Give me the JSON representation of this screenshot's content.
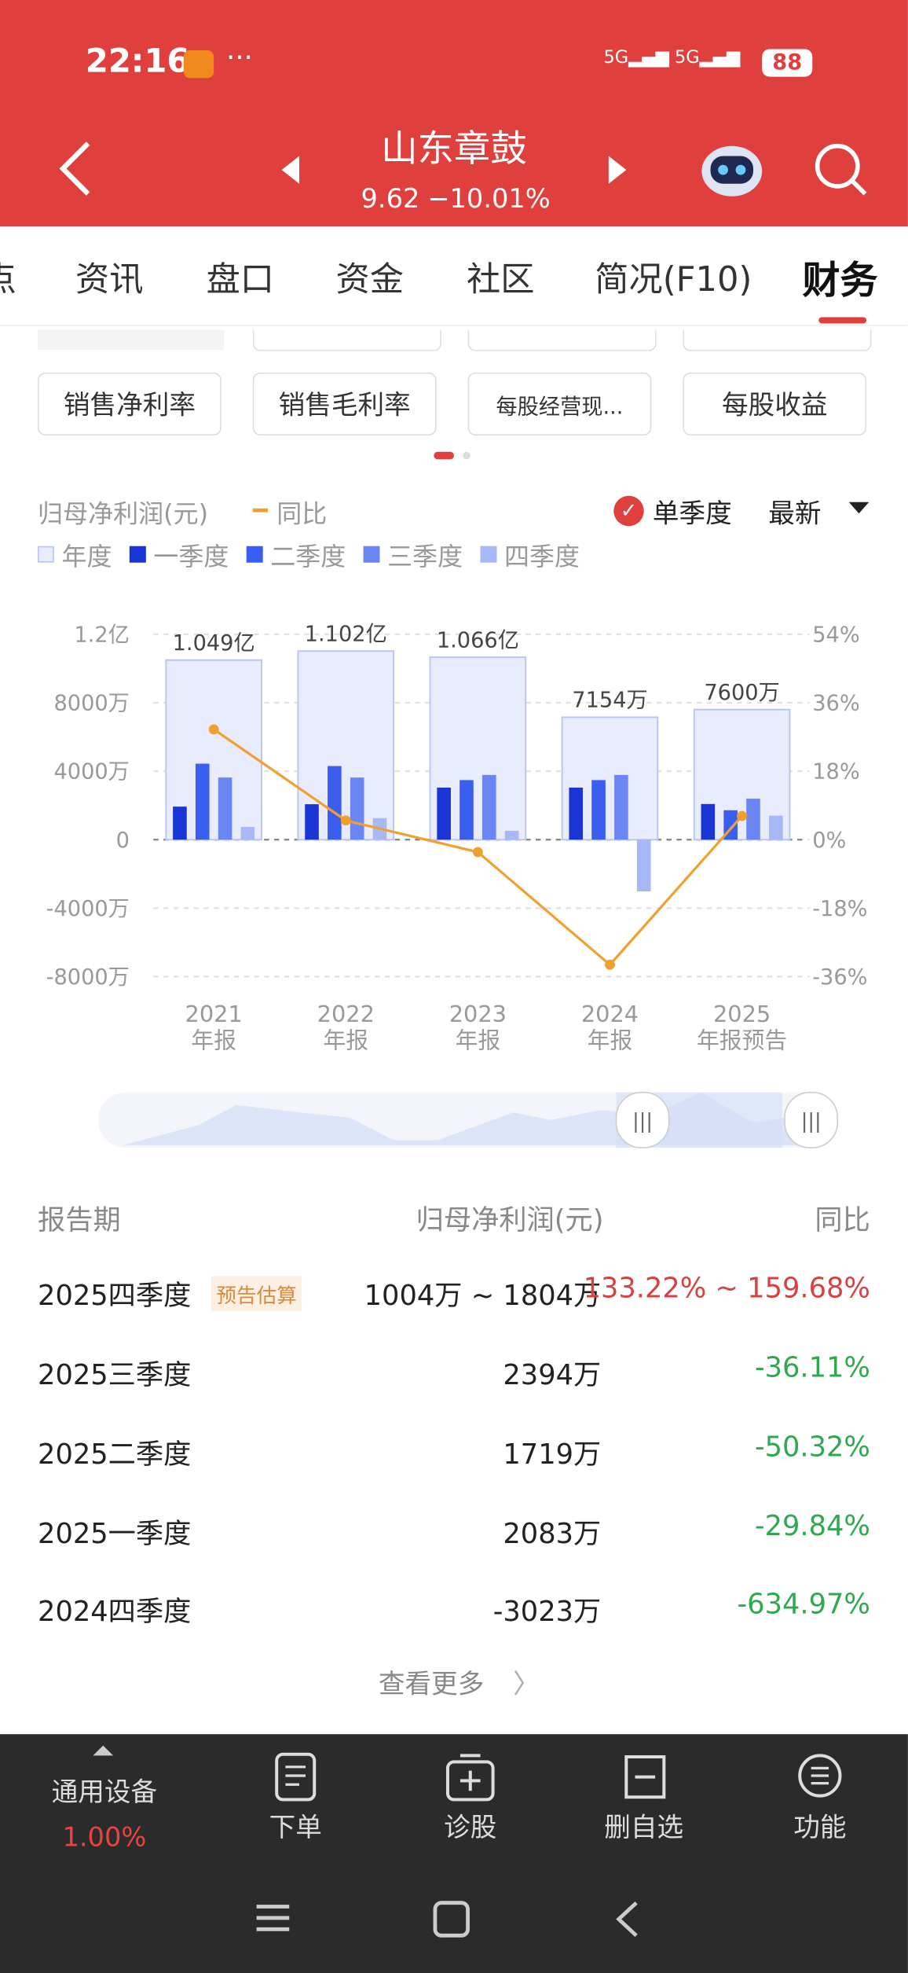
{
  "status_bar": {
    "time": "22:16",
    "battery": "88"
  },
  "header": {
    "title": "山东章鼓",
    "price": "9.62",
    "change": "−10.01%"
  },
  "tabs": [
    "点",
    "资讯",
    "盘口",
    "资金",
    "社区",
    "简况(F10)",
    "财务"
  ],
  "chips": [
    "销售净利率",
    "销售毛利率",
    "每股经营现...",
    "每股收益"
  ],
  "chart_controls": {
    "single_quarter": "单季度",
    "latest": "最新"
  },
  "chart_data": {
    "type": "bar",
    "y_label": "归母净利润(元)",
    "categories": [
      [
        "2021",
        "年报"
      ],
      [
        "2022",
        "年报"
      ],
      [
        "2023",
        "年报"
      ],
      [
        "2024",
        "年报"
      ],
      [
        "2025",
        "年报预告"
      ]
    ],
    "series": [
      {
        "name": "年度",
        "color": "#e8ecfd",
        "values": [
          10490,
          11020,
          10660,
          7154,
          7600
        ],
        "value_labels": [
          "1.049亿",
          "1.102亿",
          "1.066亿",
          "7154万",
          "7600万"
        ]
      },
      {
        "name": "一季度",
        "color": "#1a35d6",
        "values": [
          1930,
          2070,
          3040,
          3040,
          2083
        ]
      },
      {
        "name": "二季度",
        "color": "#3a5ff0",
        "values": [
          4440,
          4300,
          3480,
          3480,
          1719
        ]
      },
      {
        "name": "三季度",
        "color": "#6b86f2",
        "values": [
          3630,
          3630,
          3780,
          3780,
          2394
        ]
      },
      {
        "name": "四季度",
        "color": "#a7b8f7",
        "values": [
          740,
          1260,
          520,
          -3023,
          1404
        ]
      },
      {
        "name": "同比",
        "color": "#f0a030",
        "type": "line",
        "axis": "y2",
        "values": [
          29,
          5.05,
          -3.27,
          -32.89,
          6.23
        ]
      }
    ],
    "ylim": [
      -8000,
      12000
    ],
    "yticks": [
      {
        "value": -8000,
        "label": "-8000万"
      },
      {
        "value": -4000,
        "label": "-4000万"
      },
      0,
      {
        "value": 4000,
        "label": "4000万"
      },
      {
        "value": 8000,
        "label": "8000万"
      },
      {
        "value": 12000,
        "label": "1.2亿"
      }
    ],
    "y2lim": [
      -36,
      54
    ],
    "y2ticks": [
      {
        "value": -36,
        "label": "-36%"
      },
      {
        "value": -18,
        "label": "-18%"
      },
      {
        "value": 0,
        "label": "0%"
      },
      {
        "value": 18,
        "label": "18%"
      },
      {
        "value": 36,
        "label": "36%"
      },
      {
        "value": 54,
        "label": "54%"
      }
    ],
    "grid": true
  },
  "table": {
    "header": [
      "报告期",
      "归母净利润(元)",
      "同比"
    ],
    "rows": [
      [
        "2025四季度",
        "1004万 ~ 1804万",
        "133.22% ~ 159.68%"
      ],
      [
        "2025三季度",
        "2394万",
        "-36.11%"
      ],
      [
        "2025二季度",
        "1719万",
        "-50.32%"
      ],
      [
        "2025一季度",
        "2083万",
        "-29.84%"
      ],
      [
        "2024四季度",
        "-3023万",
        "-634.97%"
      ]
    ],
    "tag": "预告估算",
    "more": "查看更多"
  },
  "bottom_nav": {
    "sector": "通用设备",
    "sector_change": "1.00%",
    "items": [
      "下单",
      "诊股",
      "删自选",
      "功能"
    ]
  }
}
